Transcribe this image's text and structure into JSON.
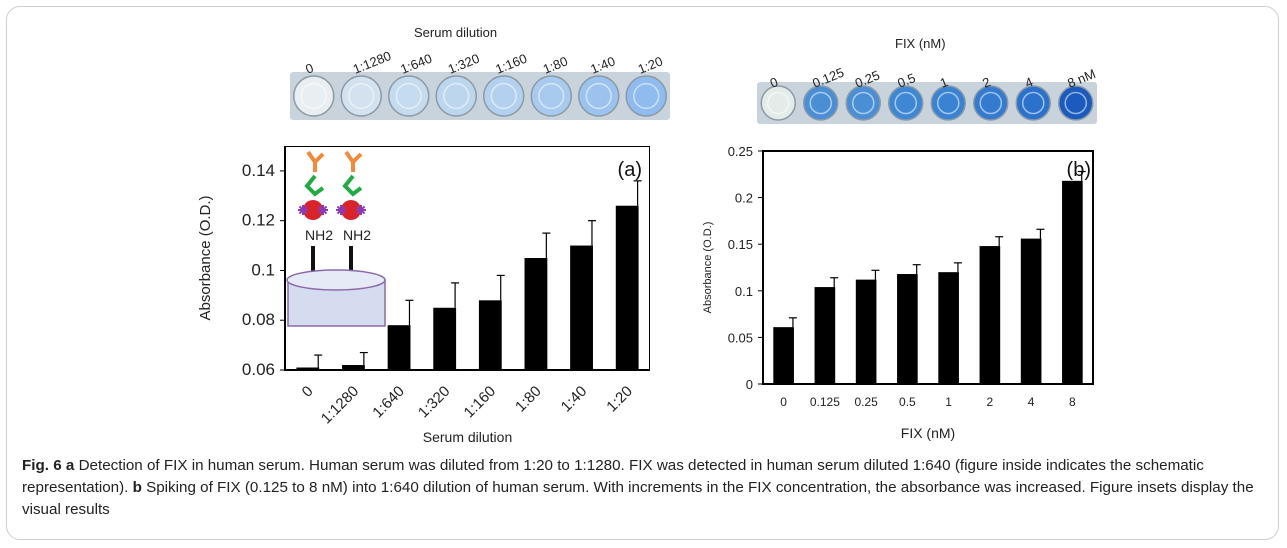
{
  "panel_a": {
    "photo_title": "Serum dilution",
    "photo_labels": [
      "0",
      "1:1280",
      "1:640",
      "1:320",
      "1:160",
      "1:80",
      "1:40",
      "1:20"
    ],
    "panel_label": "(a)",
    "schematic_labels": [
      "NH2",
      "NH2"
    ],
    "colors": {
      "antibody_top": "#f08a3c",
      "antibody_mid": "#22aa44",
      "particle": "#d9232a",
      "spike": "#8a3bb5",
      "well": "#d6dcef"
    }
  },
  "panel_b": {
    "photo_title": "FIX (nM)",
    "photo_labels": [
      "0",
      "0.125",
      "0.25",
      "0.5",
      "1",
      "2",
      "4",
      "8 nM"
    ],
    "panel_label": "(b)"
  },
  "chart_data": [
    {
      "type": "bar",
      "title": "",
      "xlabel": "Serum dilution",
      "ylabel": "Absorbance (O.D.)",
      "categories": [
        "0",
        "1:1280",
        "1:640",
        "1:320",
        "1:160",
        "1:80",
        "1:40",
        "1:20"
      ],
      "values": [
        0.061,
        0.062,
        0.078,
        0.085,
        0.088,
        0.105,
        0.11,
        0.126
      ],
      "errors": [
        0.005,
        0.005,
        0.01,
        0.01,
        0.01,
        0.01,
        0.01,
        0.01
      ],
      "ylim": [
        0.06,
        0.15
      ],
      "yticks": [
        "0.06",
        "0.08",
        "0.1",
        "0.12",
        "0.14"
      ],
      "bar_color": "#000000"
    },
    {
      "type": "bar",
      "title": "",
      "xlabel": "FIX (nM)",
      "ylabel": "Absorbance (O.D.)",
      "categories": [
        "0",
        "0.125",
        "0.25",
        "0.5",
        "1",
        "2",
        "4",
        "8"
      ],
      "values": [
        0.061,
        0.104,
        0.112,
        0.118,
        0.12,
        0.148,
        0.156,
        0.218
      ],
      "errors": [
        0.01,
        0.01,
        0.01,
        0.01,
        0.01,
        0.01,
        0.01,
        0.01
      ],
      "ylim": [
        0,
        0.25
      ],
      "yticks": [
        "0",
        "0.05",
        "0.1",
        "0.15",
        "0.2",
        "0.25"
      ],
      "bar_color": "#000000"
    }
  ],
  "caption": {
    "fig_label": "Fig. 6",
    "a_label": "a",
    "a_text": " Detection of FIX in human serum. Human serum was diluted from 1:20 to 1:1280. FIX was detected in human serum diluted 1:640 (figure inside indicates the schematic representation). ",
    "b_label": "b",
    "b_text": " Spiking of FIX (0.125 to 8 nM) into 1:640 dilution of human serum. With increments in the FIX concentration, the absorbance was increased. Figure insets display the visual results"
  }
}
